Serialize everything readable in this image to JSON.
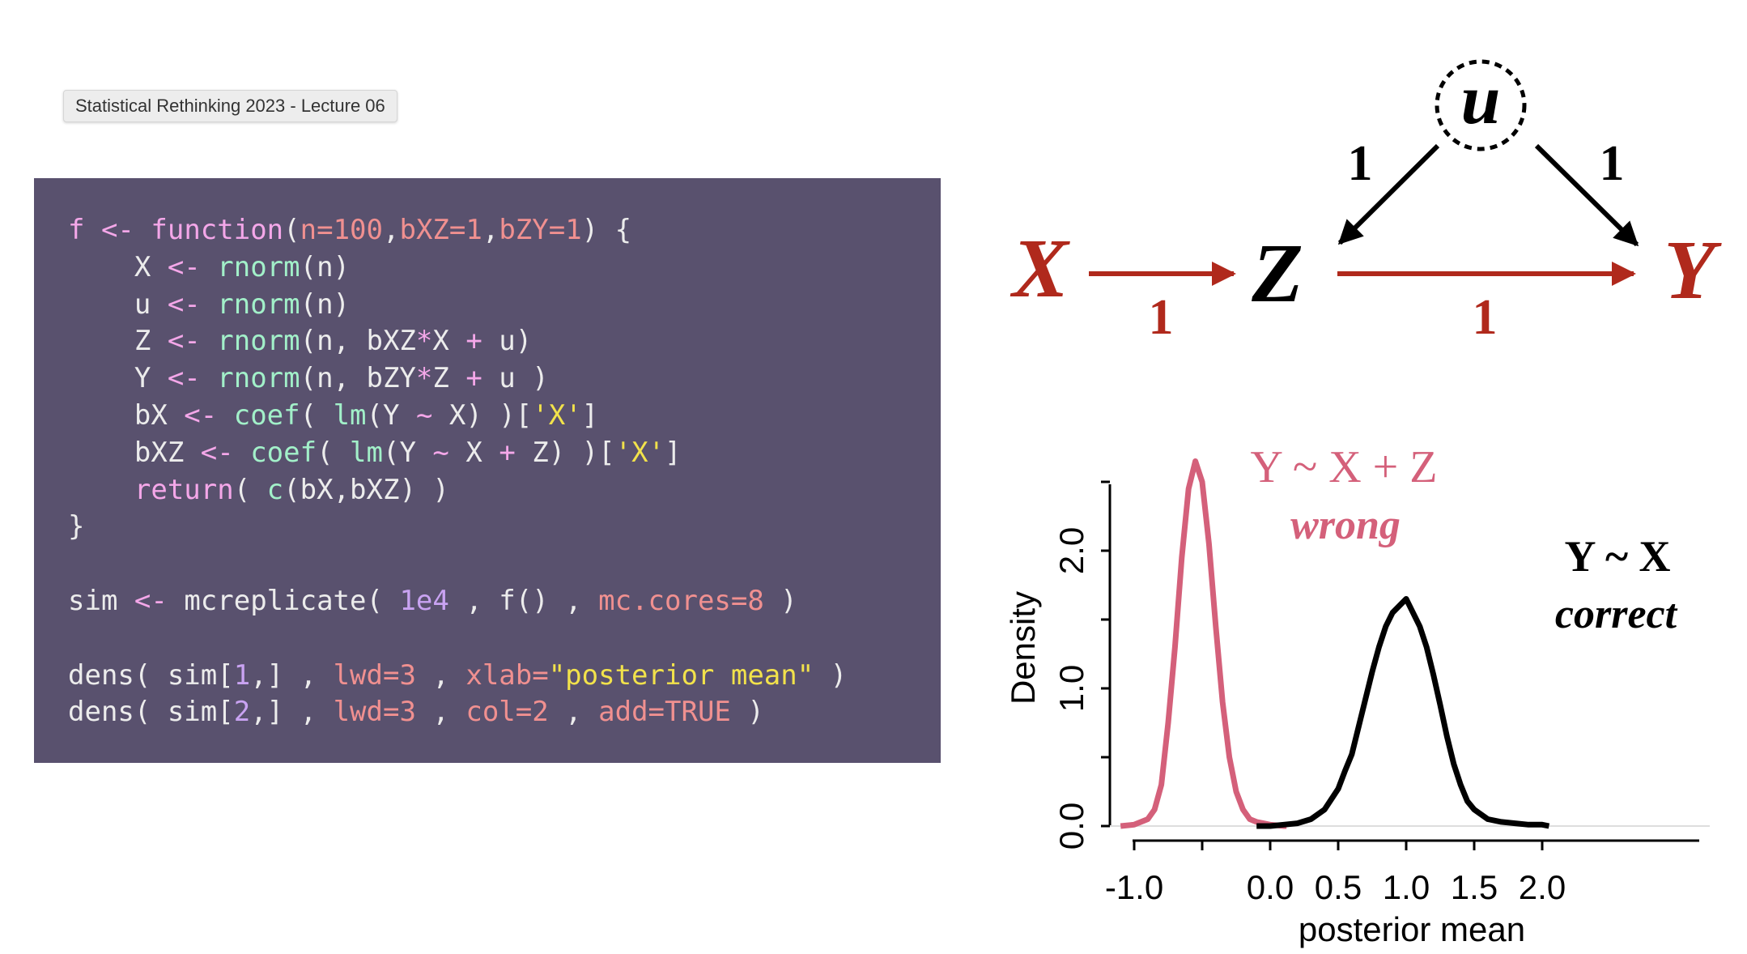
{
  "tab_label": "Statistical Rethinking 2023 - Lecture 06",
  "colors": {
    "code_background": "#59516e",
    "dag_red": "#b0291c",
    "wrong_curve": "#d4607a",
    "correct_curve": "#000000"
  },
  "code": {
    "lines": [
      [
        [
          "f",
          "k"
        ],
        [
          " <- ",
          "o"
        ],
        [
          "function",
          "k"
        ],
        [
          "(",
          "d"
        ],
        [
          "n=100",
          "a"
        ],
        [
          ",",
          "d"
        ],
        [
          "bXZ=1",
          "a"
        ],
        [
          ",",
          "d"
        ],
        [
          "bZY=1",
          "a"
        ],
        [
          ") {",
          "d"
        ]
      ],
      [
        [
          "    X ",
          "d"
        ],
        [
          "<- ",
          "o"
        ],
        [
          "rnorm",
          "f"
        ],
        [
          "(n)",
          "d"
        ]
      ],
      [
        [
          "    u ",
          "d"
        ],
        [
          "<- ",
          "o"
        ],
        [
          "rnorm",
          "f"
        ],
        [
          "(n)",
          "d"
        ]
      ],
      [
        [
          "    Z ",
          "d"
        ],
        [
          "<- ",
          "o"
        ],
        [
          "rnorm",
          "f"
        ],
        [
          "(n, bXZ",
          "d"
        ],
        [
          "*",
          "o"
        ],
        [
          "X ",
          "d"
        ],
        [
          "+",
          "o"
        ],
        [
          " u)",
          "d"
        ]
      ],
      [
        [
          "    Y ",
          "d"
        ],
        [
          "<- ",
          "o"
        ],
        [
          "rnorm",
          "f"
        ],
        [
          "(n, bZY",
          "d"
        ],
        [
          "*",
          "o"
        ],
        [
          "Z ",
          "d"
        ],
        [
          "+",
          "o"
        ],
        [
          " u )",
          "d"
        ]
      ],
      [
        [
          "    bX ",
          "d"
        ],
        [
          "<- ",
          "o"
        ],
        [
          "coef",
          "f"
        ],
        [
          "( ",
          "d"
        ],
        [
          "lm",
          "f"
        ],
        [
          "(Y ",
          "d"
        ],
        [
          "~",
          "o"
        ],
        [
          " X) )[",
          "d"
        ],
        [
          "'X'",
          "s"
        ],
        [
          "]",
          "d"
        ]
      ],
      [
        [
          "    bXZ ",
          "d"
        ],
        [
          "<- ",
          "o"
        ],
        [
          "coef",
          "f"
        ],
        [
          "( ",
          "d"
        ],
        [
          "lm",
          "f"
        ],
        [
          "(Y ",
          "d"
        ],
        [
          "~",
          "o"
        ],
        [
          " X ",
          "d"
        ],
        [
          "+",
          "o"
        ],
        [
          " Z) )[",
          "d"
        ],
        [
          "'X'",
          "s"
        ],
        [
          "]",
          "d"
        ]
      ],
      [
        [
          "    ",
          "d"
        ],
        [
          "return",
          "k"
        ],
        [
          "( ",
          "d"
        ],
        [
          "c",
          "f"
        ],
        [
          "(bX,bXZ) )",
          "d"
        ]
      ],
      [
        [
          "}",
          "d"
        ]
      ],
      [
        [
          "",
          "d"
        ]
      ],
      [
        [
          "sim ",
          "d"
        ],
        [
          "<- ",
          "o"
        ],
        [
          "mcreplicate",
          "d"
        ],
        [
          "( ",
          "d"
        ],
        [
          "1e4",
          "n"
        ],
        [
          " , ",
          "d"
        ],
        [
          "f",
          "d"
        ],
        [
          "() , ",
          "d"
        ],
        [
          "mc.cores=8",
          "a"
        ],
        [
          " )",
          "d"
        ]
      ],
      [
        [
          "",
          "d"
        ]
      ],
      [
        [
          "dens",
          "d"
        ],
        [
          "( sim[",
          "d"
        ],
        [
          "1",
          "n"
        ],
        [
          ",] , ",
          "d"
        ],
        [
          "lwd=3",
          "a"
        ],
        [
          " , ",
          "d"
        ],
        [
          "xlab=",
          "a"
        ],
        [
          "\"posterior mean\"",
          "s"
        ],
        [
          " )",
          "d"
        ]
      ],
      [
        [
          "dens",
          "d"
        ],
        [
          "( sim[",
          "d"
        ],
        [
          "2",
          "n"
        ],
        [
          ",] , ",
          "d"
        ],
        [
          "lwd=3",
          "a"
        ],
        [
          " , ",
          "d"
        ],
        [
          "col=2",
          "a"
        ],
        [
          " , ",
          "d"
        ],
        [
          "add=TRUE",
          "a"
        ],
        [
          " )",
          "d"
        ]
      ]
    ]
  },
  "dag": {
    "nodes": {
      "x": "X",
      "z": "Z",
      "y": "Y",
      "u": "u"
    },
    "edge_labels": {
      "x_z": "1",
      "z_y": "1",
      "u_z": "1",
      "u_y": "1"
    }
  },
  "plot": {
    "ylabel": "Density",
    "xlabel": "posterior mean",
    "yticks": [
      "0.0",
      "1.0",
      "2.0"
    ],
    "xticks": [
      "-1.0",
      "0.0",
      "0.5",
      "1.0",
      "1.5",
      "2.0"
    ],
    "wrong_label": "Y ~ X + Z",
    "wrong_sub": "wrong",
    "correct_label": "Y ~ X",
    "correct_sub": "correct"
  },
  "chart_data": {
    "type": "line",
    "xlabel": "posterior mean",
    "ylabel": "Density",
    "xlim": [
      -1.1,
      2.05
    ],
    "ylim": [
      0,
      2.6
    ],
    "series": [
      {
        "name": "Y ~ X + Z",
        "x": [
          -1.1,
          -1.0,
          -0.9,
          -0.85,
          -0.8,
          -0.75,
          -0.7,
          -0.65,
          -0.6,
          -0.55,
          -0.5,
          -0.45,
          -0.4,
          -0.35,
          -0.3,
          -0.25,
          -0.2,
          -0.15,
          -0.1,
          -0.05,
          0.0,
          0.05,
          0.1,
          0.12
        ],
        "y": [
          0.0,
          0.01,
          0.05,
          0.12,
          0.3,
          0.75,
          1.3,
          1.95,
          2.45,
          2.65,
          2.5,
          2.05,
          1.45,
          0.9,
          0.5,
          0.25,
          0.12,
          0.05,
          0.03,
          0.02,
          0.01,
          0.005,
          0.0,
          0.0
        ]
      },
      {
        "name": "Y ~ X",
        "x": [
          -0.1,
          0.0,
          0.1,
          0.2,
          0.3,
          0.4,
          0.5,
          0.55,
          0.6,
          0.65,
          0.7,
          0.75,
          0.8,
          0.85,
          0.9,
          0.95,
          1.0,
          1.05,
          1.1,
          1.15,
          1.2,
          1.25,
          1.3,
          1.35,
          1.4,
          1.45,
          1.5,
          1.6,
          1.7,
          1.8,
          1.9,
          2.0,
          2.05
        ],
        "y": [
          0.0,
          0.0,
          0.01,
          0.02,
          0.05,
          0.12,
          0.27,
          0.4,
          0.52,
          0.72,
          0.92,
          1.12,
          1.3,
          1.45,
          1.55,
          1.6,
          1.65,
          1.55,
          1.45,
          1.3,
          1.1,
          0.88,
          0.65,
          0.45,
          0.3,
          0.18,
          0.12,
          0.05,
          0.03,
          0.02,
          0.01,
          0.01,
          0.0
        ]
      }
    ]
  }
}
